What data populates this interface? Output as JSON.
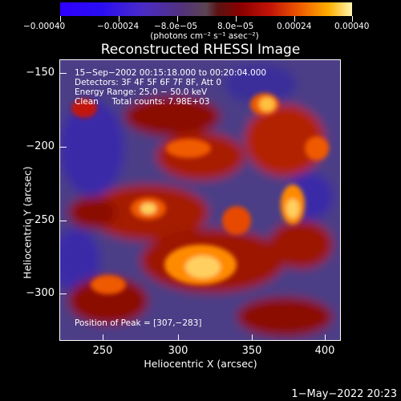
{
  "colorbar": {
    "ticks": [
      "−0.00040",
      "−0.00024",
      "−8.0e−05",
      "8.0e−05",
      "0.00024",
      "0.00040"
    ],
    "units": "(photons cm⁻² s⁻¹ asec⁻²)"
  },
  "plot": {
    "title": "Reconstructed RHESSI Image",
    "info_lines": [
      "15−Sep−2002 00:15:18.000 to 00:20:04.000",
      "Detectors: 3F 4F 5F 6F 7F 8F, Att 0",
      "Energy Range: 25.0 − 50.0 keV",
      "Clean     Total counts: 7.98E+03"
    ],
    "peak_text": "Position of Peak = [307,−283]"
  },
  "axes": {
    "x_title": "Heliocentric X (arcsec)",
    "y_title": "Heliocentric Y (arcsec)",
    "x_ticks": [
      "250",
      "300",
      "350",
      "400"
    ],
    "y_ticks": [
      "−150",
      "−200",
      "−250",
      "−300"
    ]
  },
  "footer": {
    "timestamp": "1−May−2022 20:23"
  },
  "colors": {
    "background": "#000000",
    "text": "#ffffff",
    "map_low": "#4e3f87",
    "map_high": "#fff6b0"
  }
}
